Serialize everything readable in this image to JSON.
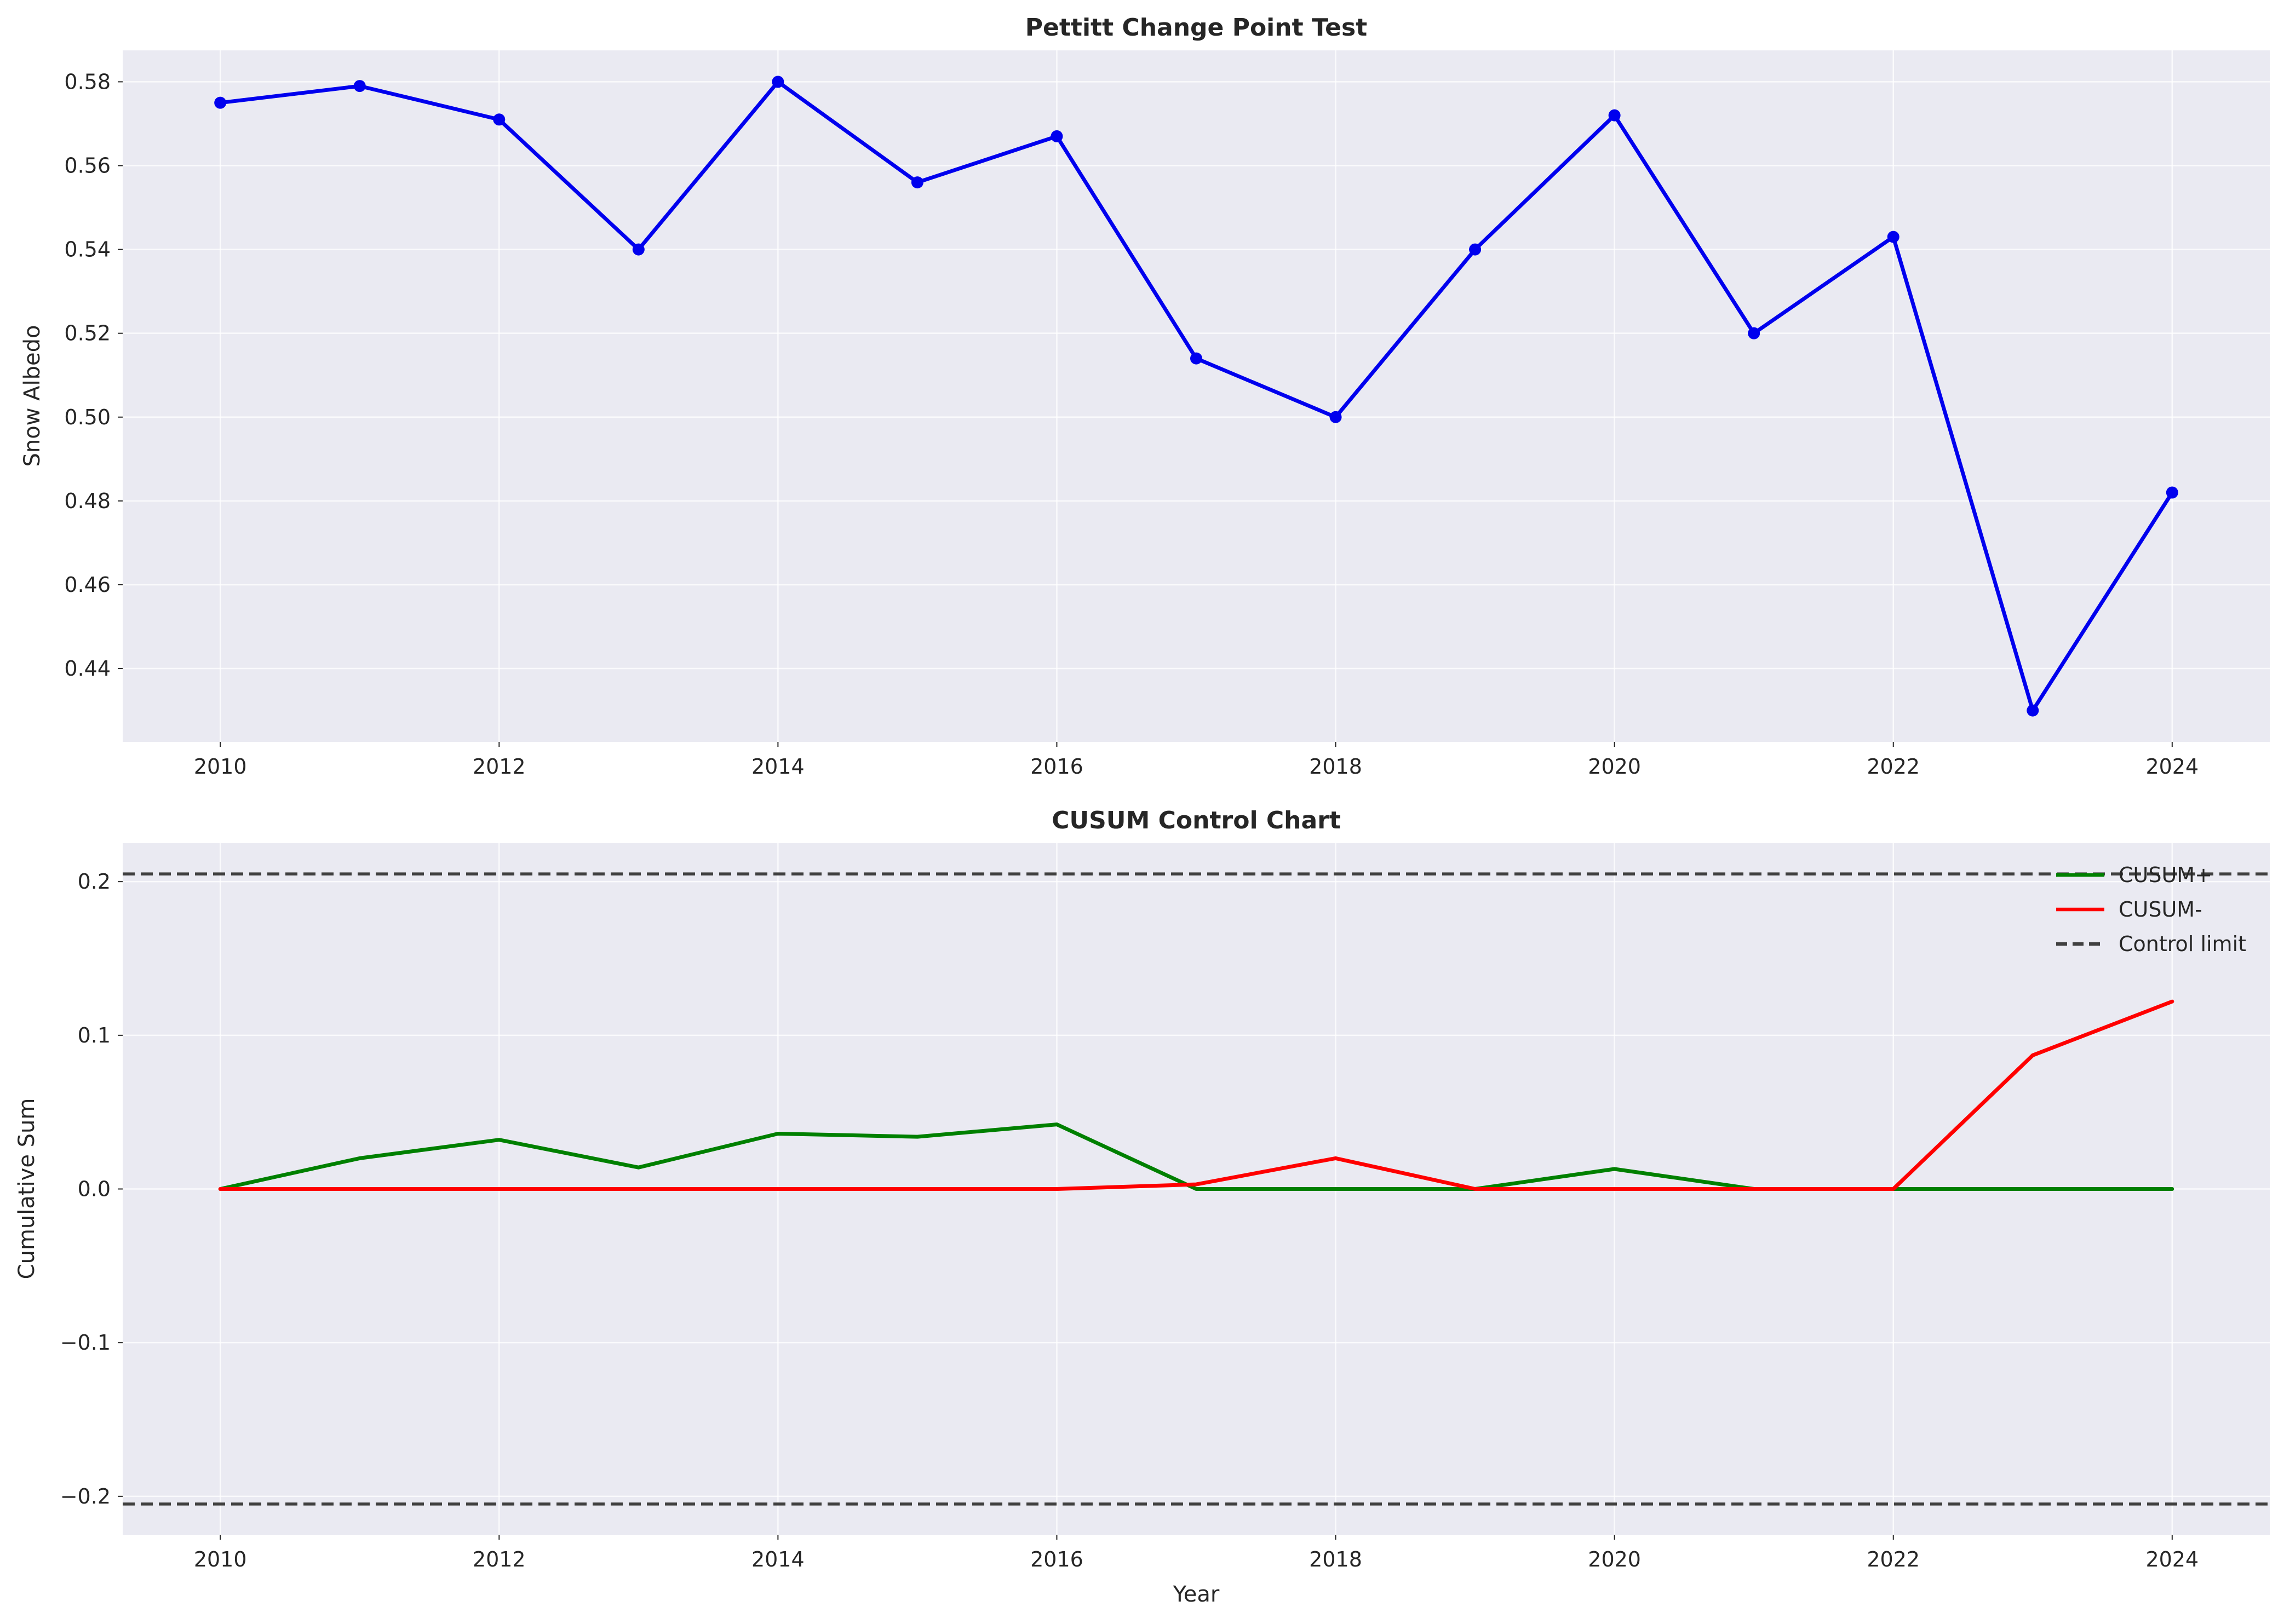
{
  "chart_data": [
    {
      "type": "line",
      "title": "Pettitt Change Point Test",
      "xlabel": "",
      "ylabel": "Snow Albedo",
      "x": [
        2010,
        2011,
        2012,
        2013,
        2014,
        2015,
        2016,
        2017,
        2018,
        2019,
        2020,
        2021,
        2022,
        2023,
        2024
      ],
      "xticks": [
        2010,
        2012,
        2014,
        2016,
        2018,
        2020,
        2022,
        2024
      ],
      "xlim": [
        2009.3,
        2024.7
      ],
      "yticks": [
        0.44,
        0.46,
        0.48,
        0.5,
        0.52,
        0.54,
        0.56,
        0.58
      ],
      "ylim": [
        0.4225,
        0.5875
      ],
      "grid": true,
      "series": [
        {
          "color": "#0000ee",
          "markers": true,
          "values": [
            0.575,
            0.579,
            0.571,
            0.54,
            0.58,
            0.556,
            0.567,
            0.514,
            0.5,
            0.54,
            0.572,
            0.52,
            0.543,
            0.43,
            0.482
          ]
        }
      ]
    },
    {
      "type": "line",
      "title": "CUSUM Control Chart",
      "xlabel": "Year",
      "ylabel": "Cumulative Sum",
      "x": [
        2010,
        2011,
        2012,
        2013,
        2014,
        2015,
        2016,
        2017,
        2018,
        2019,
        2020,
        2021,
        2022,
        2023,
        2024
      ],
      "xticks": [
        2010,
        2012,
        2014,
        2016,
        2018,
        2020,
        2022,
        2024
      ],
      "xlim": [
        2009.3,
        2024.7
      ],
      "yticks": [
        -0.2,
        -0.1,
        0.0,
        0.1,
        0.2
      ],
      "ytick_labels": [
        "−0.2",
        "−0.1",
        "0.0",
        "0.1",
        "0.2"
      ],
      "ylim": [
        -0.225,
        0.225
      ],
      "grid": true,
      "legend_position": "upper-right",
      "series": [
        {
          "name": "CUSUM+",
          "color": "#008000",
          "values": [
            0.0,
            0.02,
            0.032,
            0.014,
            0.036,
            0.034,
            0.042,
            0.0,
            0.0,
            0.0,
            0.013,
            0.0,
            0.0,
            0.0,
            0.0
          ]
        },
        {
          "name": "CUSUM-",
          "color": "#ff0000",
          "values": [
            0.0,
            0.0,
            0.0,
            0.0,
            0.0,
            0.0,
            0.0,
            0.003,
            0.02,
            0.0,
            0.0,
            0.0,
            0.0,
            0.087,
            0.122
          ]
        }
      ],
      "reference_lines": {
        "name": "Control limit",
        "color": "#404040",
        "style": "dashed",
        "values": [
          0.205,
          -0.205
        ]
      }
    }
  ]
}
